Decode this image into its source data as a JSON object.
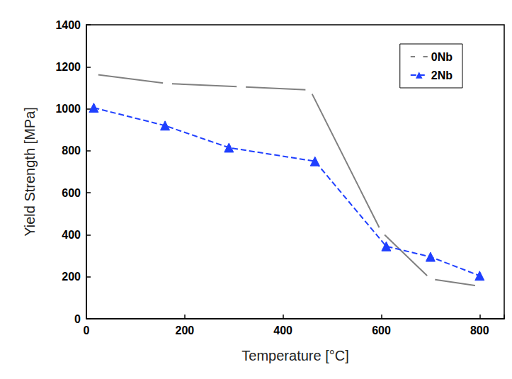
{
  "chart_data": {
    "type": "line",
    "xlabel": "Temperature [°C]",
    "ylabel": "Yield Strength [MPa]",
    "xlim": [
      0,
      850
    ],
    "xticks": [
      0,
      200,
      400,
      600,
      800
    ],
    "ylim": [
      0,
      1400
    ],
    "yticks": [
      0,
      200,
      400,
      600,
      800,
      1000,
      1200,
      1400
    ],
    "grid": false,
    "legend": "upper right",
    "series": [
      {
        "name": "0Nb",
        "color": "#808080",
        "marker": "open_circle",
        "line_style": "solid",
        "x": [
          15,
          165,
          315,
          455,
          600,
          700,
          800
        ],
        "values": [
          1165,
          1120,
          1105,
          1090,
          415,
          190,
          155
        ]
      },
      {
        "name": "2Nb",
        "color": "#1f3fff",
        "marker": "triangle",
        "line_style": "dashed",
        "x": [
          15,
          160,
          290,
          465,
          610,
          700,
          800
        ],
        "values": [
          1005,
          920,
          815,
          750,
          345,
          295,
          205
        ]
      }
    ]
  }
}
